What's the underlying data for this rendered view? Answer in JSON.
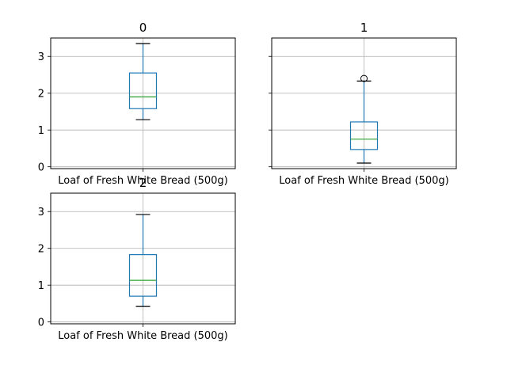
{
  "chart_data": [
    {
      "type": "box",
      "title": "0",
      "categories": [
        "Loaf of Fresh White Bread (500g)"
      ],
      "boxes": [
        {
          "whisker_low": 1.28,
          "q1": 1.58,
          "median": 1.9,
          "q3": 2.55,
          "whisker_high": 3.35,
          "outliers": []
        }
      ],
      "ylim": [
        -0.05,
        3.5
      ],
      "yticks": [
        0,
        1,
        2,
        3
      ],
      "grid": true
    },
    {
      "type": "box",
      "title": "1",
      "categories": [
        "Loaf of Fresh White Bread (500g)"
      ],
      "boxes": [
        {
          "whisker_low": 0.1,
          "q1": 0.47,
          "median": 0.75,
          "q3": 1.22,
          "whisker_high": 2.33,
          "outliers": [
            2.4
          ]
        }
      ],
      "ylim": [
        -0.05,
        3.5
      ],
      "yticks": [
        0,
        1,
        2,
        3
      ],
      "grid": true
    },
    {
      "type": "box",
      "title": "2",
      "categories": [
        "Loaf of Fresh White Bread (500g)"
      ],
      "boxes": [
        {
          "whisker_low": 0.42,
          "q1": 0.7,
          "median": 1.13,
          "q3": 1.83,
          "whisker_high": 2.92,
          "outliers": []
        }
      ],
      "ylim": [
        -0.05,
        3.5
      ],
      "yticks": [
        0,
        1,
        2,
        3
      ],
      "grid": true
    }
  ],
  "colors": {
    "box": "#1f77b4",
    "median": "#2ca02c",
    "whisker_cap": "#000000",
    "grid": "#b0b0b0"
  }
}
